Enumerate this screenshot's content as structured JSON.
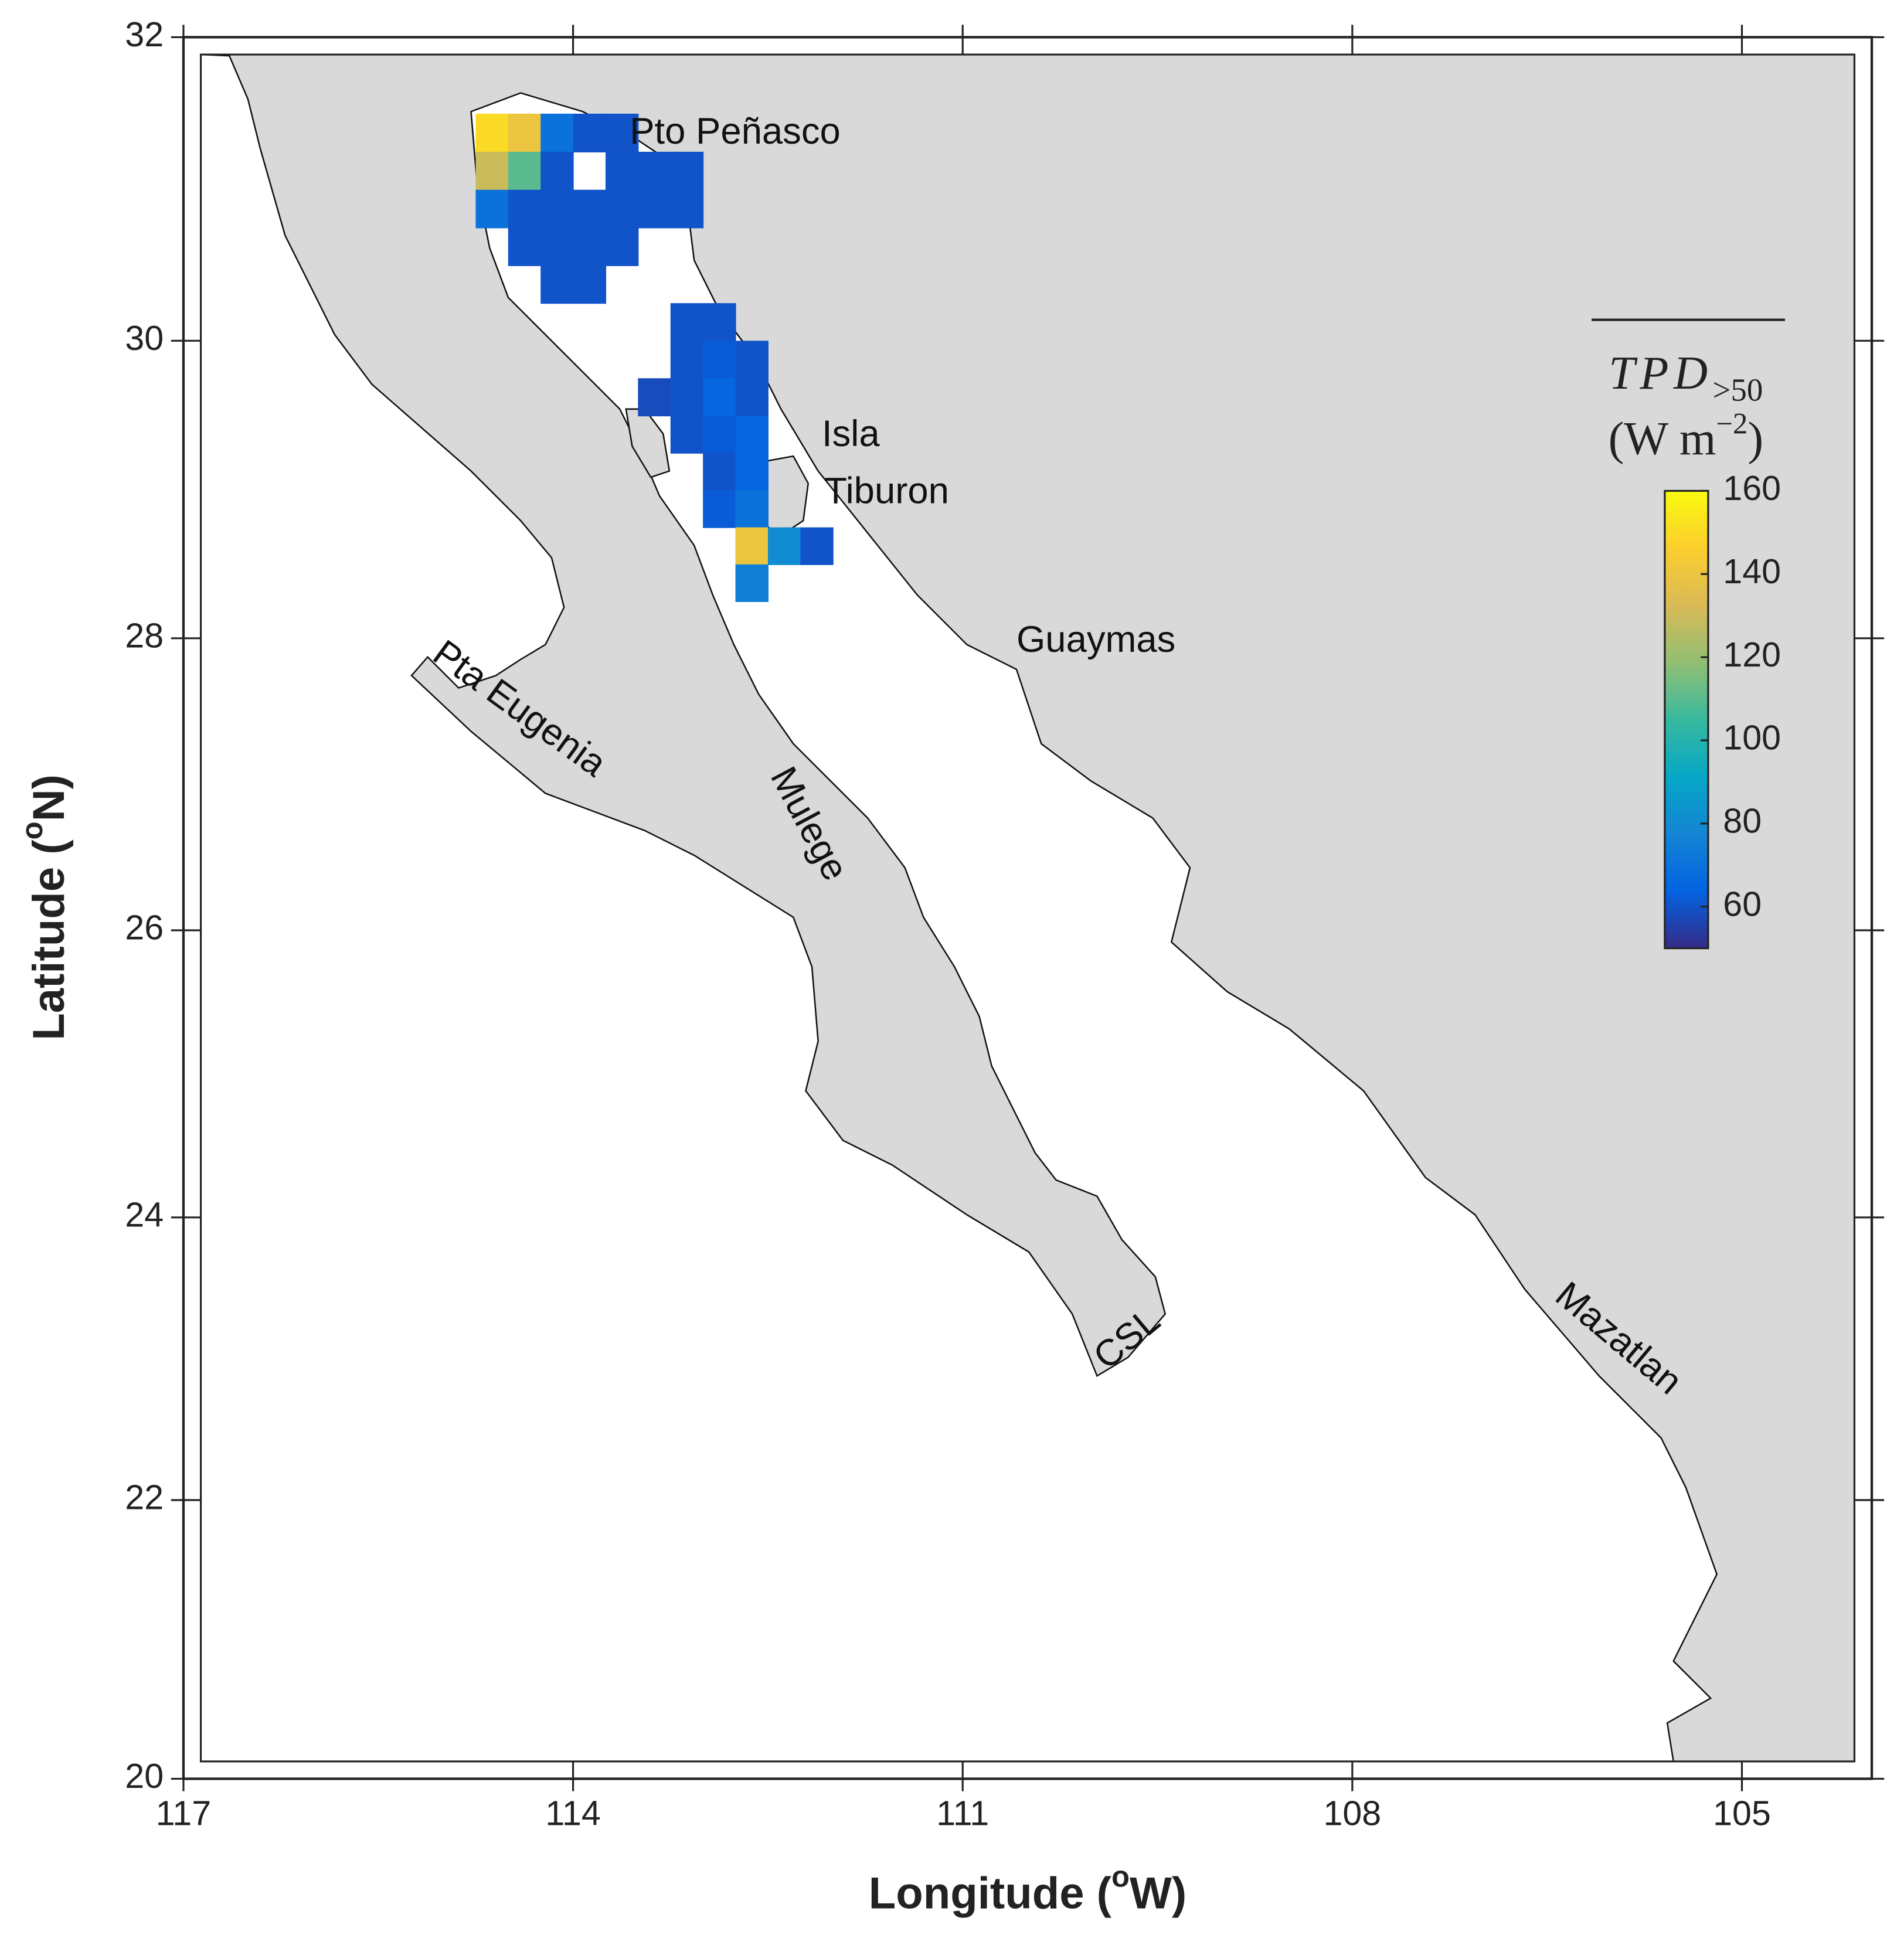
{
  "chart_data": {
    "type": "map",
    "xlabel": [
      "Longitude (",
      "o",
      "W)"
    ],
    "ylabel": [
      "Latitude (",
      "o",
      "N)"
    ],
    "xlim": [
      117,
      104
    ],
    "xticks": [
      117,
      114,
      111,
      108,
      105
    ],
    "ylim": [
      20,
      32
    ],
    "yticks": [
      20,
      22,
      24,
      26,
      28,
      30,
      32
    ],
    "places": [
      "Pto Peñasco",
      "Isla",
      "Tiburon",
      "Guaymas",
      "Pta Eugenia",
      "Mulege",
      "CSL",
      "Mazatlan"
    ],
    "colorbar": {
      "title": "TPD",
      "title_sub": ">50",
      "units_open": "(W m",
      "units_exp": "−2",
      "units_close": ")",
      "clim": [
        50,
        160
      ],
      "ticks": [
        60,
        80,
        100,
        120,
        140,
        160
      ]
    },
    "cells": {
      "lon": [
        114.625,
        114.375,
        114.125,
        113.875,
        113.625,
        114.625,
        114.375,
        114.125,
        113.625,
        113.375,
        113.125,
        114.625,
        114.375,
        114.125,
        113.875,
        113.625,
        113.375,
        113.125,
        114.375,
        114.125,
        113.875,
        113.625,
        114.125,
        113.875,
        113.125,
        112.875,
        113.125,
        112.875,
        112.625,
        113.375,
        113.125,
        112.875,
        112.625,
        113.125,
        112.875,
        112.625,
        112.875,
        112.625,
        112.875,
        112.625,
        112.625,
        112.375,
        112.125,
        112.625
      ],
      "lat": [
        31.375,
        31.375,
        31.375,
        31.375,
        31.375,
        31.125,
        31.125,
        31.125,
        31.125,
        31.125,
        31.125,
        30.875,
        30.875,
        30.875,
        30.875,
        30.875,
        30.875,
        30.875,
        30.625,
        30.625,
        30.625,
        30.625,
        30.375,
        30.375,
        30.125,
        30.125,
        29.875,
        29.875,
        29.875,
        29.625,
        29.625,
        29.625,
        29.625,
        29.375,
        29.375,
        29.375,
        29.125,
        29.125,
        28.875,
        28.875,
        28.625,
        28.625,
        28.625,
        28.375
      ],
      "values": [
        150,
        140,
        70,
        60,
        60,
        130,
        110,
        60,
        60,
        60,
        60,
        70,
        60,
        60,
        60,
        60,
        60,
        60,
        60,
        60,
        60,
        60,
        60,
        60,
        60,
        60,
        60,
        62,
        60,
        58,
        60,
        65,
        60,
        60,
        62,
        65,
        60,
        65,
        62,
        70,
        140,
        80,
        60,
        75
      ]
    }
  }
}
